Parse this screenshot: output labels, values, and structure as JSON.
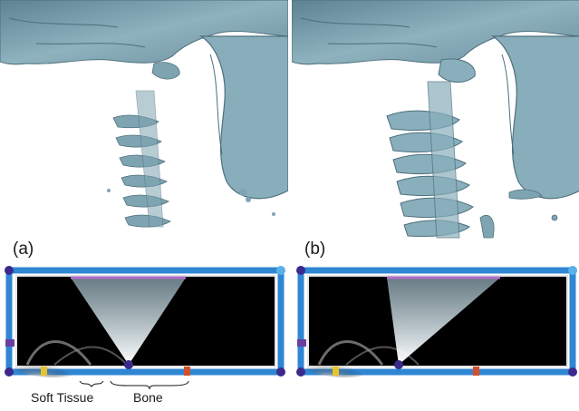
{
  "panels": [
    {
      "id": "a",
      "label": "(a)"
    },
    {
      "id": "b",
      "label": "(b)"
    }
  ],
  "annotations": {
    "soft_tissue": "Soft Tissue",
    "bone": "Bone"
  },
  "colors": {
    "background": "#ffffff",
    "bone_surface": "#7fa4b1",
    "bone_shadow": "#4d6f7c",
    "widget_frame": "#2f86d3",
    "widget_inner_border": "#e6e6e6",
    "histogram_background": "#000000",
    "handle_node": "#3b2a8c",
    "triangle_top_edge": "#b070c8",
    "marker_yellow": "#e8c22a",
    "marker_red": "#d4502a"
  },
  "icons": {
    "corner_nodes": "sphere-handle-icon",
    "color_markers": "color-marker-icon"
  }
}
